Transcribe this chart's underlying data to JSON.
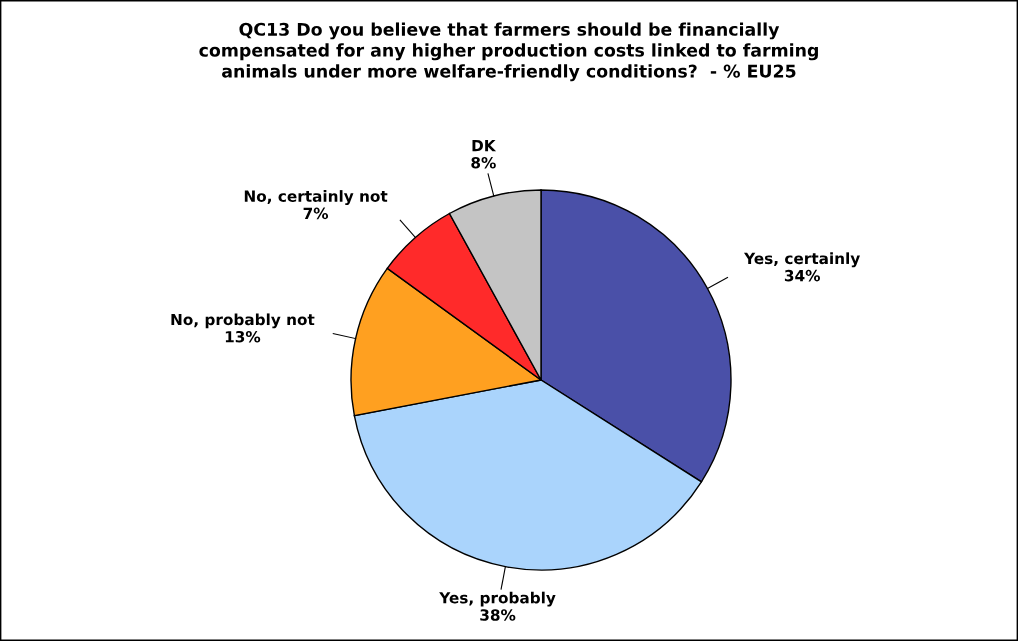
{
  "chart_data": {
    "type": "pie",
    "title": "QC13 Do you believe that farmers should be financially\ncompensated for any higher production costs linked to farming\nanimals under more welfare-friendly conditions?  - % EU25",
    "categories": [
      "Yes, certainly",
      "Yes, probably",
      "No, probably not",
      "No, certainly not",
      "DK"
    ],
    "values": [
      34,
      38,
      13,
      7,
      8
    ],
    "colors": [
      "#4a50a8",
      "#aad4fc",
      "#ffa020",
      "#ff2a2a",
      "#c4c4c4"
    ],
    "value_labels": [
      "34%",
      "38%",
      "13%",
      "7%",
      "8%"
    ]
  }
}
